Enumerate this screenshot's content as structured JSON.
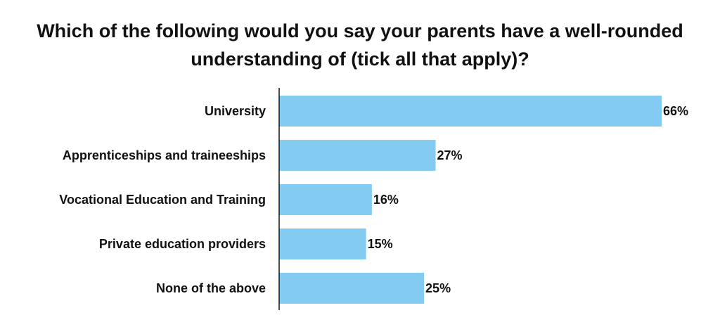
{
  "chart_data": {
    "type": "bar",
    "orientation": "horizontal",
    "title": "Which of the following would you say your parents have a well-rounded understanding of (tick all that apply)?",
    "title_lines": [
      "Which of the following would you say your parents have a well-rounded",
      "understanding of (tick all that apply)?"
    ],
    "categories": [
      "University",
      "Apprenticeships and traineeships",
      "Vocational Education and Training",
      "Private education providers",
      "None of the above"
    ],
    "values": [
      66,
      27,
      16,
      15,
      25
    ],
    "value_labels": [
      "66%",
      "27%",
      "16%",
      "15%",
      "25%"
    ],
    "unit": "%",
    "xlim": [
      0,
      66
    ],
    "grid": false,
    "legend": "none",
    "bar_color": "#84cbf2"
  }
}
